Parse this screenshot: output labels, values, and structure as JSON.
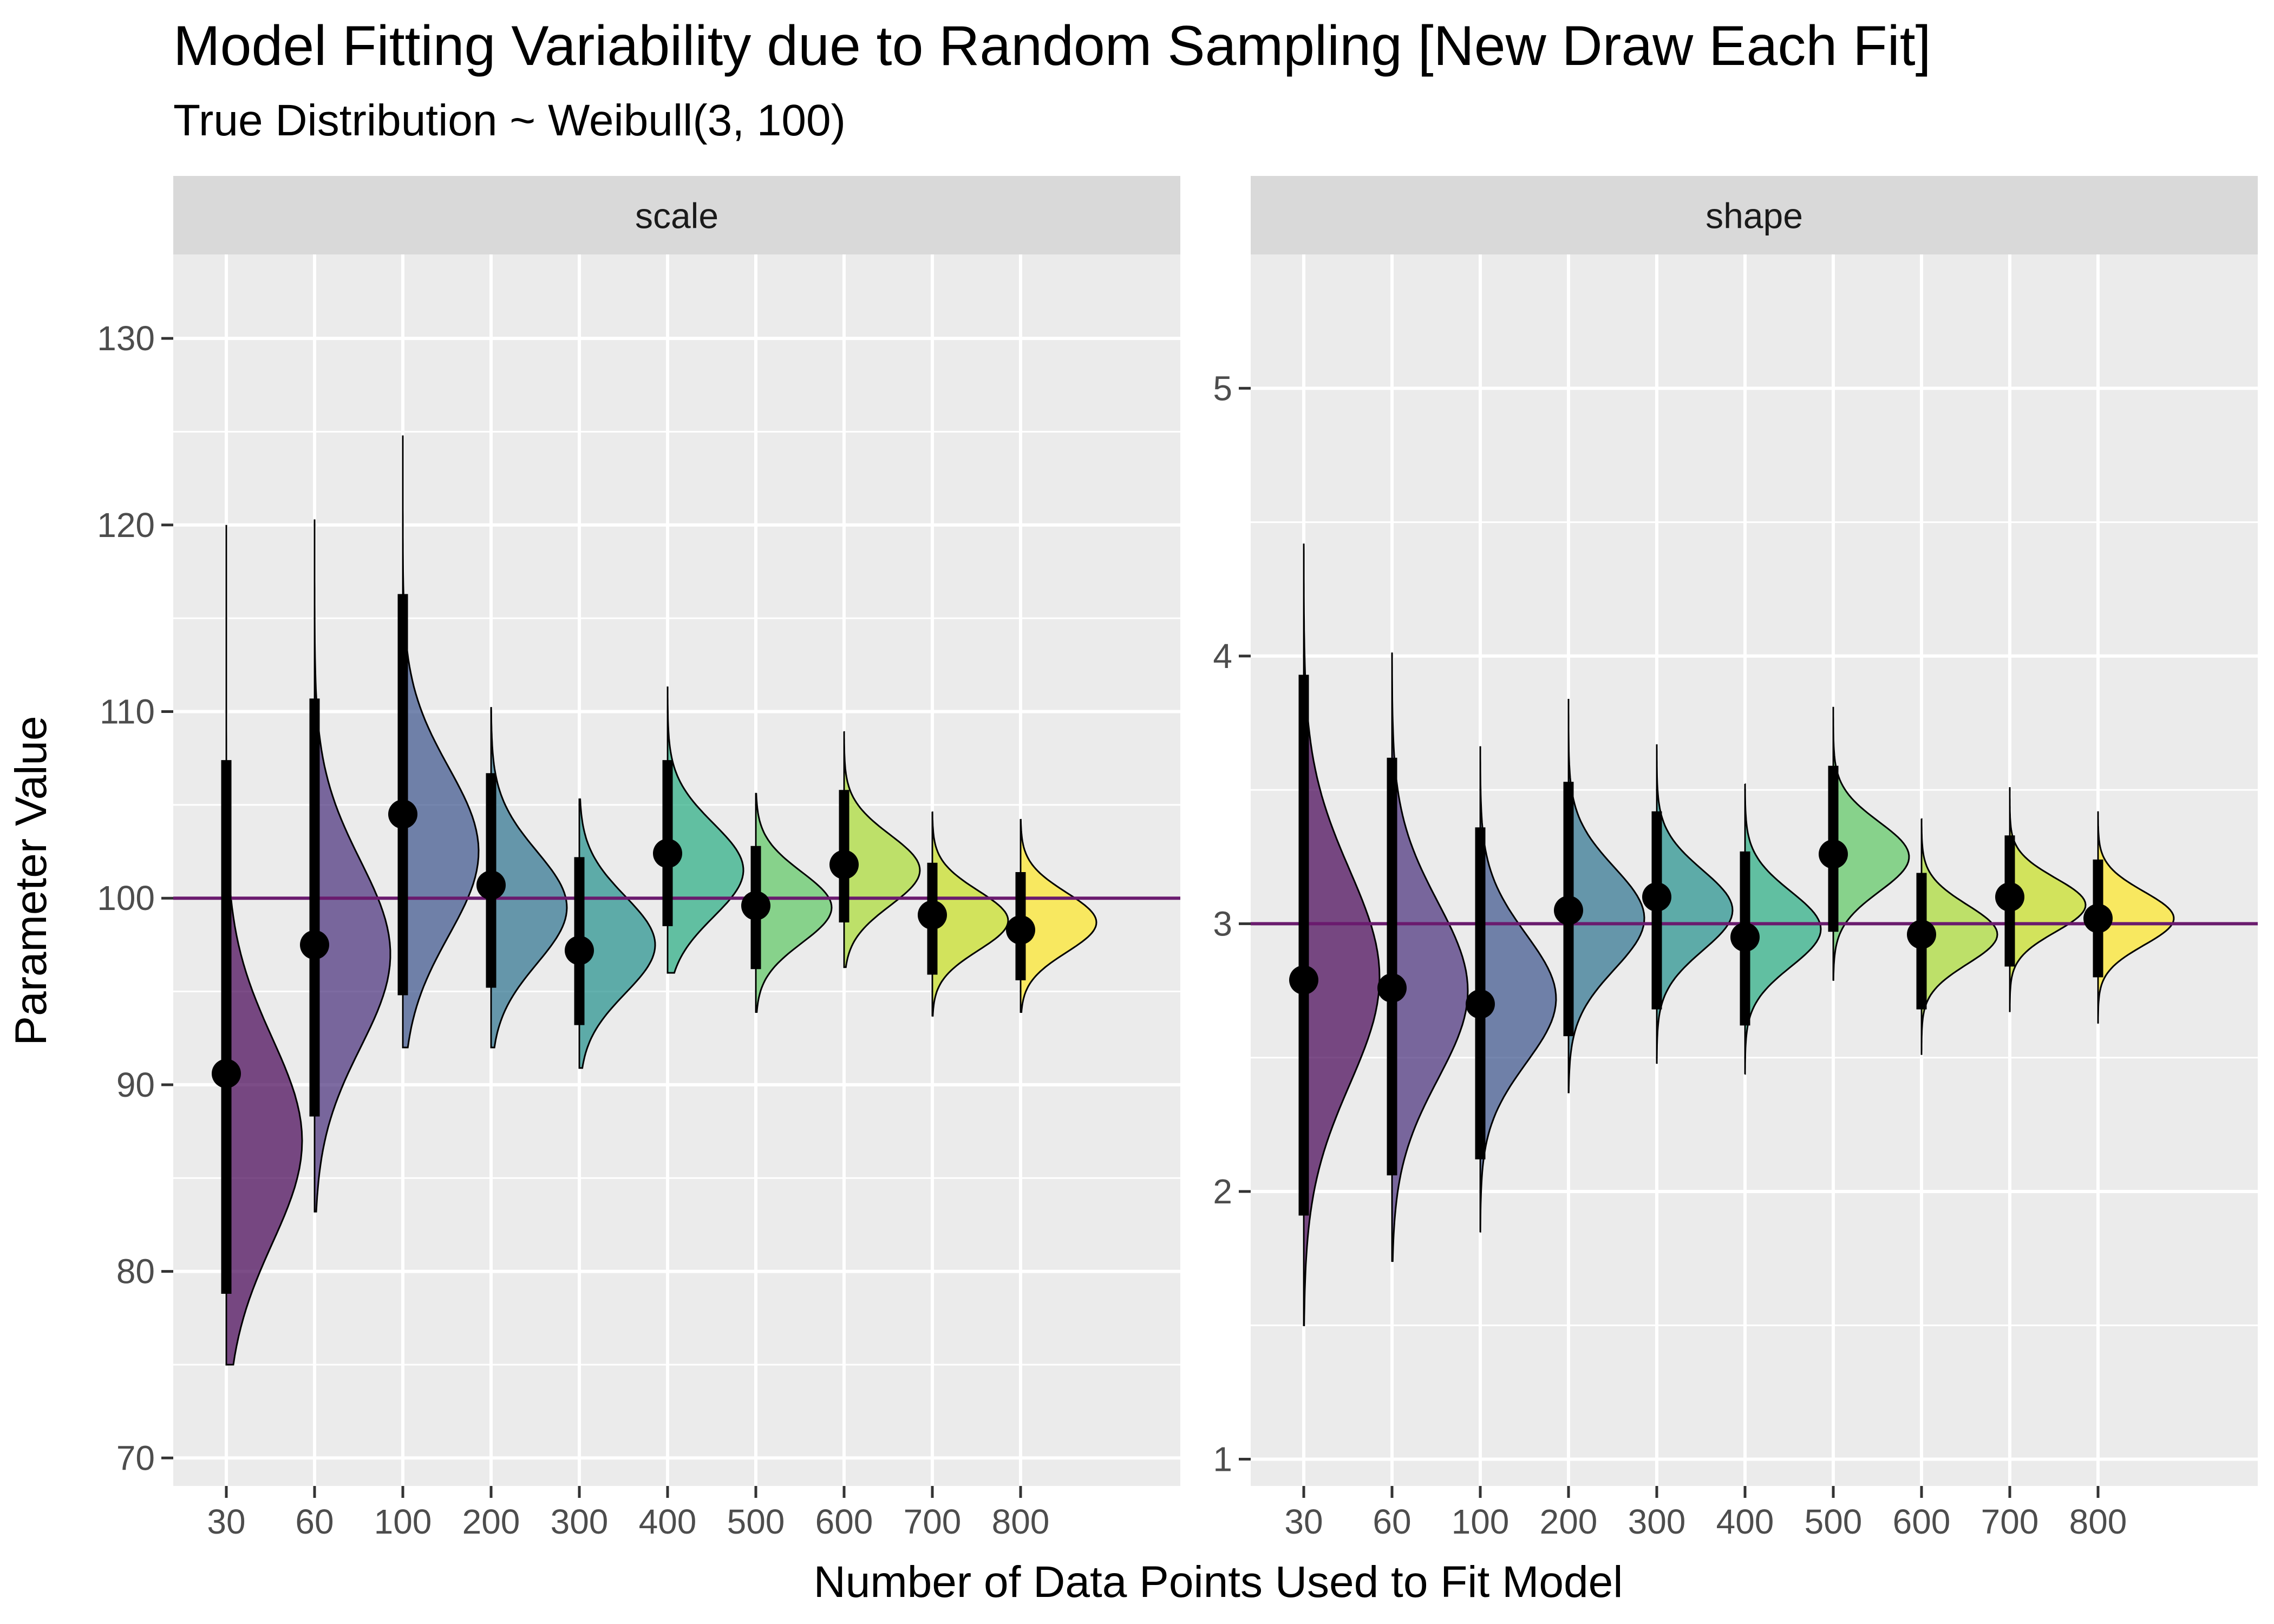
{
  "chart_data": {
    "type": "halfeye",
    "title": "Model Fitting Variability due to Random Sampling [New Draw Each Fit]",
    "subtitle": "True Distribution ~ Weibull(3, 100)",
    "xlabel": "Number of Data Points Used to Fit Model",
    "ylabel": "Parameter Value",
    "categories": [
      "30",
      "60",
      "100",
      "200",
      "300",
      "400",
      "500",
      "600",
      "700",
      "800"
    ],
    "colors": [
      "#440154",
      "#472D7B",
      "#3B528B",
      "#2C728E",
      "#21908C",
      "#27AD81",
      "#5DC863",
      "#AADC32",
      "#C7E020",
      "#FDE725"
    ],
    "reference_line_color": "#6a1b6e",
    "panel_background": "#ebebeb",
    "strip_background": "#d9d9d9",
    "gridline_color": "#ffffff",
    "facets": [
      {
        "label": "scale",
        "ylim": [
          68.5,
          134.5
        ],
        "yticks": [
          70,
          80,
          90,
          100,
          110,
          120,
          130
        ],
        "reference": 100,
        "points": [
          {
            "x": "30",
            "median": 90.6,
            "lower": 78.8,
            "upper": 107.4,
            "min": 75.0,
            "max": 120.0,
            "density_peak": 87.0,
            "spread": 5.5
          },
          {
            "x": "60",
            "median": 97.5,
            "lower": 88.3,
            "upper": 110.7,
            "min": 83.2,
            "max": 120.3,
            "density_peak": 97.0,
            "spread": 5.0
          },
          {
            "x": "100",
            "median": 104.5,
            "lower": 94.8,
            "upper": 116.3,
            "min": 92.0,
            "max": 124.8,
            "density_peak": 102.5,
            "spread": 4.5
          },
          {
            "x": "200",
            "median": 100.7,
            "lower": 95.2,
            "upper": 106.7,
            "min": 92.0,
            "max": 110.2,
            "density_peak": 99.5,
            "spread": 3.0
          },
          {
            "x": "300",
            "median": 97.2,
            "lower": 93.2,
            "upper": 102.2,
            "min": 90.9,
            "max": 105.3,
            "density_peak": 97.5,
            "spread": 2.6
          },
          {
            "x": "400",
            "median": 102.4,
            "lower": 98.5,
            "upper": 107.4,
            "min": 96.0,
            "max": 111.3,
            "density_peak": 101.5,
            "spread": 2.5
          },
          {
            "x": "500",
            "median": 99.6,
            "lower": 96.2,
            "upper": 102.8,
            "min": 93.9,
            "max": 105.6,
            "density_peak": 99.5,
            "spread": 1.9
          },
          {
            "x": "600",
            "median": 101.8,
            "lower": 98.7,
            "upper": 105.8,
            "min": 96.3,
            "max": 108.9,
            "density_peak": 101.5,
            "spread": 1.9
          },
          {
            "x": "700",
            "median": 99.1,
            "lower": 95.9,
            "upper": 101.9,
            "min": 93.7,
            "max": 104.6,
            "density_peak": 98.8,
            "spread": 1.6
          },
          {
            "x": "800",
            "median": 98.3,
            "lower": 95.6,
            "upper": 101.4,
            "min": 93.9,
            "max": 104.2,
            "density_peak": 98.7,
            "spread": 1.6
          }
        ]
      },
      {
        "label": "shape",
        "ylim": [
          0.9,
          5.5
        ],
        "yticks": [
          1,
          2,
          3,
          4,
          5
        ],
        "reference": 3,
        "points": [
          {
            "x": "30",
            "median": 2.79,
            "lower": 1.91,
            "upper": 3.93,
            "min": 1.5,
            "max": 4.42,
            "density_peak": 2.8,
            "spread": 0.4
          },
          {
            "x": "60",
            "median": 2.76,
            "lower": 2.06,
            "upper": 3.62,
            "min": 1.74,
            "max": 4.01,
            "density_peak": 2.75,
            "spread": 0.33
          },
          {
            "x": "100",
            "median": 2.7,
            "lower": 2.12,
            "upper": 3.36,
            "min": 1.85,
            "max": 3.66,
            "density_peak": 2.72,
            "spread": 0.24
          },
          {
            "x": "200",
            "median": 3.05,
            "lower": 2.58,
            "upper": 3.53,
            "min": 2.37,
            "max": 3.84,
            "density_peak": 3.02,
            "spread": 0.19
          },
          {
            "x": "300",
            "median": 3.1,
            "lower": 2.68,
            "upper": 3.42,
            "min": 2.48,
            "max": 3.67,
            "density_peak": 3.05,
            "spread": 0.15
          },
          {
            "x": "400",
            "median": 2.95,
            "lower": 2.62,
            "upper": 3.27,
            "min": 2.44,
            "max": 3.52,
            "density_peak": 2.98,
            "spread": 0.14
          },
          {
            "x": "500",
            "median": 3.26,
            "lower": 2.97,
            "upper": 3.59,
            "min": 2.79,
            "max": 3.81,
            "density_peak": 3.25,
            "spread": 0.13
          },
          {
            "x": "600",
            "median": 2.96,
            "lower": 2.68,
            "upper": 3.19,
            "min": 2.51,
            "max": 3.39,
            "density_peak": 2.96,
            "spread": 0.11
          },
          {
            "x": "700",
            "median": 3.1,
            "lower": 2.84,
            "upper": 3.33,
            "min": 2.67,
            "max": 3.51,
            "density_peak": 3.07,
            "spread": 0.1
          },
          {
            "x": "800",
            "median": 3.02,
            "lower": 2.8,
            "upper": 3.24,
            "min": 2.63,
            "max": 3.42,
            "density_peak": 3.02,
            "spread": 0.1
          }
        ]
      }
    ]
  }
}
